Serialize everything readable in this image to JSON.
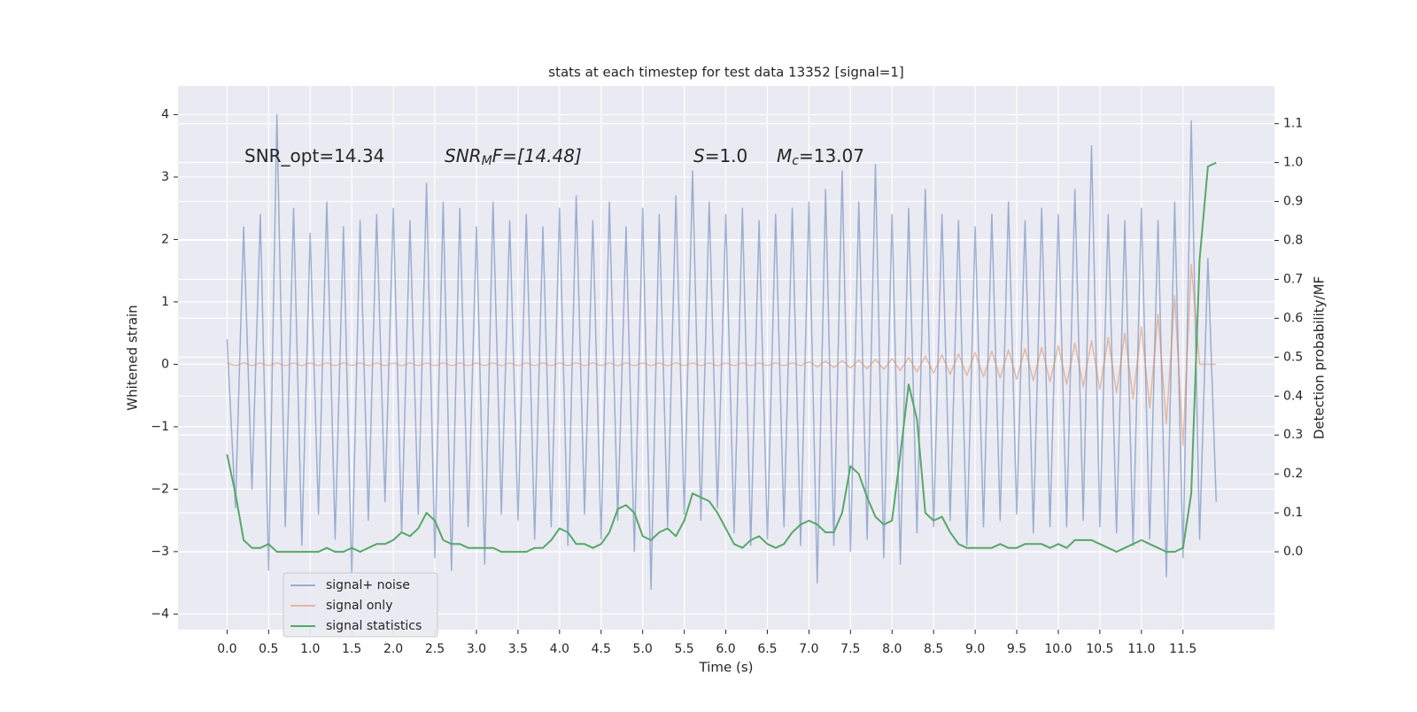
{
  "chart_data": {
    "type": "line",
    "title": "stats at each timestep for test data 13352 [signal=1]",
    "xlabel": "Time (s)",
    "ylabel": "Whitened strain",
    "y2label": "Detection probability/MF",
    "annotations": [
      {
        "base": "SNR_opt=14.34"
      },
      {
        "base": "SNR",
        "sub": "M",
        "rest": "F=[14.48]"
      },
      {
        "base": "S",
        "rest": "=1.0"
      },
      {
        "base": "M",
        "sub": "c",
        "rest": "=13.07"
      }
    ],
    "legend_loc": "lower left",
    "grid": true,
    "xlim": [
      -0.59,
      12.6
    ],
    "ylim": [
      -4.25,
      4.46
    ],
    "y2lim": [
      -0.2,
      1.197
    ],
    "xticks": [
      {
        "value": 0,
        "label": "0.0"
      },
      {
        "value": 0.5,
        "label": "0.5"
      },
      {
        "value": 1,
        "label": "1.0"
      },
      {
        "value": 1.5,
        "label": "1.5"
      },
      {
        "value": 2,
        "label": "2.0"
      },
      {
        "value": 2.5,
        "label": "2.5"
      },
      {
        "value": 3,
        "label": "3.0"
      },
      {
        "value": 3.5,
        "label": "3.5"
      },
      {
        "value": 4,
        "label": "4.0"
      },
      {
        "value": 4.5,
        "label": "4.5"
      },
      {
        "value": 5,
        "label": "5.0"
      },
      {
        "value": 5.5,
        "label": "5.5"
      },
      {
        "value": 6,
        "label": "6.0"
      },
      {
        "value": 6.5,
        "label": "6.5"
      },
      {
        "value": 7,
        "label": "7.0"
      },
      {
        "value": 7.5,
        "label": "7.5"
      },
      {
        "value": 8,
        "label": "8.0"
      },
      {
        "value": 8.5,
        "label": "8.5"
      },
      {
        "value": 9,
        "label": "9.0"
      },
      {
        "value": 9.5,
        "label": "9.5"
      },
      {
        "value": 10,
        "label": "10.0"
      },
      {
        "value": 10.5,
        "label": "10.5"
      },
      {
        "value": 11,
        "label": "11.0"
      },
      {
        "value": 11.5,
        "label": "11.5"
      }
    ],
    "yticks": [
      {
        "value": -4,
        "label": "−4"
      },
      {
        "value": -3,
        "label": "−3"
      },
      {
        "value": -2,
        "label": "−2"
      },
      {
        "value": -1,
        "label": "−1"
      },
      0,
      1,
      2,
      3,
      4
    ],
    "y2ticks": [
      {
        "value": 0,
        "label": "0.0"
      },
      {
        "value": 0.1,
        "label": "0.1"
      },
      {
        "value": 0.2,
        "label": "0.2"
      },
      {
        "value": 0.3,
        "label": "0.3"
      },
      {
        "value": 0.4,
        "label": "0.4"
      },
      {
        "value": 0.5,
        "label": "0.5"
      },
      {
        "value": 0.6,
        "label": "0.6"
      },
      {
        "value": 0.7,
        "label": "0.7"
      },
      {
        "value": 0.8,
        "label": "0.8"
      },
      {
        "value": 0.9,
        "label": "0.9"
      },
      {
        "value": 1,
        "label": "1.0"
      },
      {
        "value": 1.1,
        "label": "1.1"
      }
    ],
    "x": [
      0,
      0.1,
      0.2,
      0.3,
      0.4,
      0.5,
      0.6,
      0.7,
      0.8,
      0.9,
      1,
      1.1,
      1.2,
      1.3,
      1.4,
      1.5,
      1.6,
      1.7,
      1.8,
      1.9,
      2,
      2.1,
      2.2,
      2.3,
      2.4,
      2.5,
      2.6,
      2.7,
      2.8,
      2.9,
      3,
      3.1,
      3.2,
      3.3,
      3.4,
      3.5,
      3.6,
      3.7,
      3.8,
      3.9,
      4,
      4.1,
      4.2,
      4.3,
      4.4,
      4.5,
      4.6,
      4.7,
      4.8,
      4.9,
      5,
      5.1,
      5.2,
      5.3,
      5.4,
      5.5,
      5.6,
      5.7,
      5.8,
      5.9,
      6,
      6.1,
      6.2,
      6.3,
      6.4,
      6.5,
      6.6,
      6.7,
      6.8,
      6.9,
      7,
      7.1,
      7.2,
      7.3,
      7.4,
      7.5,
      7.6,
      7.7,
      7.8,
      7.9,
      8,
      8.1,
      8.2,
      8.3,
      8.4,
      8.5,
      8.6,
      8.7,
      8.8,
      8.9,
      9,
      9.1,
      9.2,
      9.3,
      9.4,
      9.5,
      9.6,
      9.7,
      9.8,
      9.9,
      10,
      10.1,
      10.2,
      10.3,
      10.4,
      10.5,
      10.6,
      10.7,
      10.8,
      10.9,
      11,
      11.1,
      11.2,
      11.3,
      11.4,
      11.5,
      11.6,
      11.7,
      11.8,
      11.9
    ],
    "series": [
      {
        "name": "signal+ noise",
        "color": "#4c72b0",
        "opacity": 0.5,
        "axis": "y",
        "values": [
          0.4,
          -2.3,
          2.2,
          -2.0,
          2.4,
          -3.3,
          4.0,
          -2.6,
          2.5,
          -2.9,
          2.1,
          -2.4,
          2.6,
          -2.8,
          2.2,
          -3.4,
          2.3,
          -2.5,
          2.4,
          -2.2,
          2.5,
          -2.7,
          2.3,
          -2.4,
          2.9,
          -3.1,
          2.6,
          -3.3,
          2.5,
          -2.6,
          2.2,
          -3.2,
          2.6,
          -2.4,
          2.3,
          -2.5,
          2.4,
          -2.8,
          2.2,
          -2.6,
          2.5,
          -2.9,
          2.7,
          -2.4,
          2.3,
          -2.8,
          2.6,
          -2.5,
          2.2,
          -3.0,
          2.5,
          -3.6,
          2.4,
          -2.6,
          2.7,
          -2.4,
          3.1,
          -2.5,
          2.6,
          -2.3,
          2.4,
          -2.7,
          2.5,
          -2.9,
          2.3,
          -2.8,
          2.4,
          -2.6,
          2.5,
          -2.9,
          2.6,
          -3.5,
          2.8,
          -2.9,
          3.1,
          -3.0,
          2.6,
          -2.8,
          3.2,
          -3.1,
          2.4,
          -3.2,
          2.5,
          -2.7,
          2.8,
          -2.6,
          2.4,
          -2.5,
          2.3,
          -2.9,
          2.2,
          -2.6,
          2.4,
          -2.5,
          2.6,
          -2.4,
          2.3,
          -2.7,
          2.5,
          -2.6,
          2.4,
          -2.6,
          2.8,
          -2.5,
          3.5,
          -2.6,
          2.4,
          -2.7,
          2.3,
          -2.9,
          2.5,
          -2.8,
          2.3,
          -3.4,
          2.6,
          -3.1,
          3.9,
          -2.8,
          1.7,
          -2.2
        ]
      },
      {
        "name": "signal only",
        "color": "#dd8452",
        "opacity": 0.5,
        "axis": "y",
        "values": [
          0.02,
          -0.02,
          0.02,
          -0.02,
          0.02,
          -0.02,
          0.02,
          -0.02,
          0.02,
          -0.02,
          0.02,
          -0.02,
          0.02,
          -0.02,
          0.02,
          -0.02,
          0.02,
          -0.02,
          0.02,
          -0.02,
          0.02,
          -0.02,
          0.02,
          -0.02,
          0.02,
          -0.02,
          0.02,
          -0.02,
          0.02,
          -0.02,
          0.02,
          -0.02,
          0.02,
          -0.02,
          0.02,
          -0.02,
          0.02,
          -0.02,
          0.02,
          -0.02,
          0.02,
          -0.02,
          0.02,
          -0.02,
          0.02,
          -0.02,
          0.02,
          -0.02,
          0.02,
          -0.02,
          0.02,
          -0.02,
          0.02,
          -0.02,
          0.02,
          -0.02,
          0.02,
          -0.02,
          0.02,
          -0.02,
          0.02,
          -0.02,
          0.02,
          -0.02,
          0.02,
          -0.02,
          0.02,
          -0.02,
          0.02,
          -0.02,
          0.04,
          -0.04,
          0.05,
          -0.05,
          0.06,
          -0.06,
          0.07,
          -0.07,
          0.08,
          -0.08,
          0.09,
          -0.1,
          0.11,
          -0.12,
          0.13,
          -0.14,
          0.15,
          -0.16,
          0.17,
          -0.18,
          0.19,
          -0.2,
          0.21,
          -0.22,
          0.23,
          -0.24,
          0.25,
          -0.26,
          0.27,
          -0.28,
          0.3,
          -0.32,
          0.34,
          -0.36,
          0.38,
          -0.4,
          0.43,
          -0.46,
          0.5,
          -0.55,
          0.6,
          -0.7,
          0.8,
          -0.95,
          1.1,
          -1.3,
          1.6,
          0,
          0,
          0
        ]
      },
      {
        "name": "signal statistics",
        "color": "#55a868",
        "opacity": 1,
        "axis": "y2",
        "values": [
          0.25,
          0.15,
          0.03,
          0.01,
          0.01,
          0.02,
          0,
          0,
          0,
          0,
          0,
          0,
          0.01,
          0,
          0,
          0.01,
          0,
          0.01,
          0.02,
          0.02,
          0.03,
          0.05,
          0.04,
          0.06,
          0.1,
          0.08,
          0.03,
          0.02,
          0.02,
          0.01,
          0.01,
          0.01,
          0.01,
          0,
          0,
          0,
          0,
          0.01,
          0.01,
          0.03,
          0.06,
          0.05,
          0.02,
          0.02,
          0.01,
          0.02,
          0.05,
          0.11,
          0.12,
          0.1,
          0.04,
          0.03,
          0.05,
          0.06,
          0.04,
          0.08,
          0.15,
          0.14,
          0.13,
          0.1,
          0.06,
          0.02,
          0.01,
          0.03,
          0.04,
          0.02,
          0.01,
          0.02,
          0.05,
          0.07,
          0.08,
          0.07,
          0.05,
          0.05,
          0.1,
          0.22,
          0.2,
          0.14,
          0.09,
          0.07,
          0.08,
          0.25,
          0.43,
          0.34,
          0.1,
          0.08,
          0.09,
          0.05,
          0.02,
          0.01,
          0.01,
          0.01,
          0.01,
          0.02,
          0.01,
          0.01,
          0.02,
          0.02,
          0.02,
          0.01,
          0.02,
          0.01,
          0.03,
          0.03,
          0.03,
          0.02,
          0.01,
          0,
          0.01,
          0.02,
          0.03,
          0.02,
          0.01,
          0,
          0,
          0.01,
          0.15,
          0.75,
          0.99,
          1.0
        ]
      }
    ]
  }
}
